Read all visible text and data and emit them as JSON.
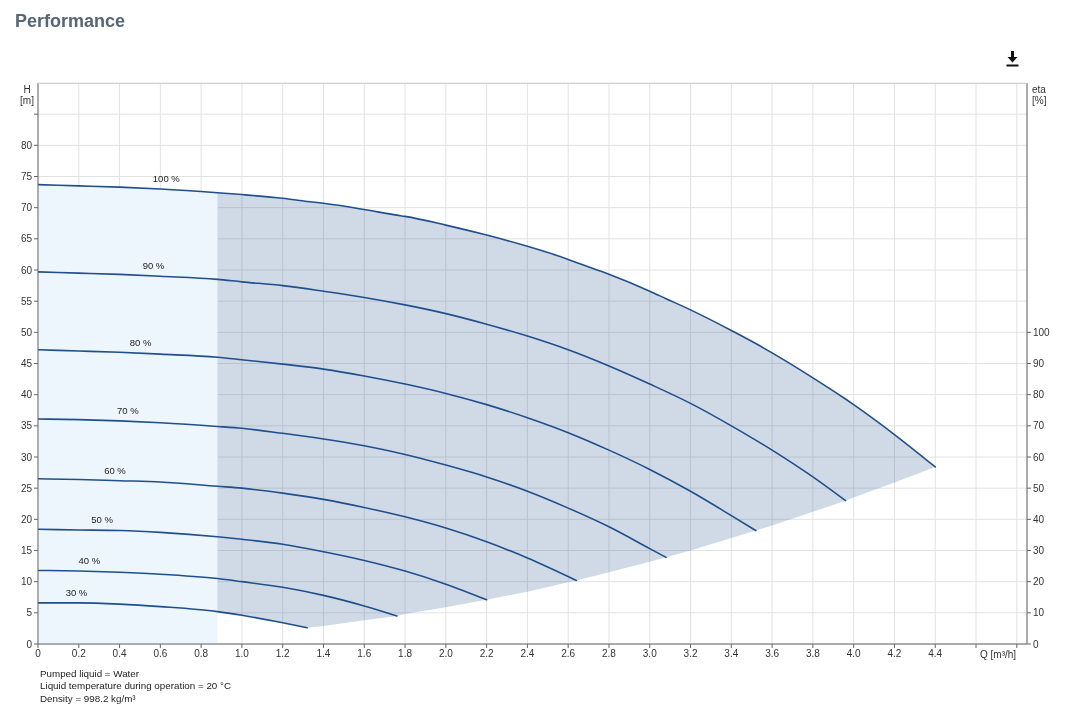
{
  "chart_data": {
    "type": "line",
    "title": "Performance",
    "xlabel": "Q [m³/h]",
    "ylabel": "H [m]",
    "y2label": "eta [%]",
    "annotations": [
      "Pumped liquid = Water",
      "Liquid temperature during operation = 20 °C",
      "Density = 998.2 kg/m³"
    ],
    "xlim": [
      0,
      4.85
    ],
    "xticks": [
      0,
      0.2,
      0.4,
      0.6,
      0.8,
      {
        "value": 1,
        "label": "1.0"
      },
      1.2,
      1.4,
      1.6,
      1.8,
      {
        "value": 2,
        "label": "2.0"
      },
      2.2,
      2.4,
      2.6,
      2.8,
      {
        "value": 3,
        "label": "3.0"
      },
      3.2,
      3.4,
      3.6,
      3.8,
      {
        "value": 4,
        "label": "4.0"
      },
      4.2,
      4.4,
      {
        "value": 4.6,
        "label": null
      },
      {
        "value": 4.8,
        "label": null
      }
    ],
    "ylim": [
      0,
      90
    ],
    "yticks": [
      0,
      5,
      10,
      15,
      20,
      25,
      30,
      35,
      40,
      45,
      50,
      55,
      60,
      65,
      70,
      75,
      80,
      {
        "value": 85,
        "label": null
      }
    ],
    "y2lim": [
      0,
      180
    ],
    "y2ticks": [
      0,
      10,
      20,
      30,
      40,
      50,
      60,
      70,
      80,
      90,
      100
    ],
    "grid": true,
    "series": [
      {
        "type": "area",
        "color": "#eef6fd",
        "x": [
          0,
          0.2,
          0.4,
          0.6,
          0.88
        ],
        "values": [
          73.7,
          73.5,
          73.3,
          73.0,
          72.4
        ]
      },
      {
        "name": "100 %",
        "color": "#1f4f8c",
        "x": [
          0,
          0.2,
          0.4,
          0.6,
          0.88,
          1.0,
          1.2,
          1.32,
          1.4,
          1.6,
          1.76,
          1.8,
          2.0,
          2.2,
          2.4,
          2.6,
          2.64,
          2.8,
          3.0,
          3.08,
          3.2,
          3.4,
          3.52,
          3.6,
          3.8,
          3.96,
          4.0,
          4.2,
          4.4
        ],
        "values": [
          73.7,
          73.5,
          73.3,
          73.0,
          72.4,
          72.1,
          71.5,
          71.0,
          70.7,
          69.7,
          68.8,
          68.6,
          67.2,
          65.6,
          63.8,
          61.7,
          61.2,
          59.3,
          56.6,
          55.4,
          53.6,
          50.3,
          48.2,
          46.7,
          42.7,
          39.3,
          38.4,
          33.6,
          28.4
        ],
        "lower": [
          null,
          null,
          null,
          null,
          5.2,
          4.6,
          3.4,
          2.6,
          2.9,
          3.8,
          4.5,
          4.8,
          5.9,
          7.1,
          8.4,
          9.9,
          10.2,
          11.5,
          13.2,
          13.9,
          15.0,
          17.0,
          18.2,
          19.0,
          21.2,
          23.0,
          23.5,
          25.9,
          28.4
        ],
        "upper": [
          null,
          null,
          null,
          null,
          72.4,
          72.1,
          71.5,
          71.0,
          70.7,
          69.7,
          68.8,
          68.6,
          67.2,
          65.6,
          63.8,
          61.7,
          61.2,
          59.3,
          56.6,
          55.4,
          53.6,
          50.3,
          48.2,
          46.7,
          42.7,
          39.3,
          38.4,
          33.6,
          28.4
        ]
      },
      {
        "name": "90 %",
        "color": "#1f4f8c",
        "x": [
          0,
          0.2,
          0.4,
          0.6,
          0.88,
          1.0,
          1.2,
          1.4,
          1.6,
          1.8,
          2.0,
          2.2,
          2.4,
          2.6,
          2.8,
          3.0,
          3.2,
          3.4,
          3.6,
          3.8,
          3.96
        ],
        "values": [
          59.7,
          59.5,
          59.3,
          59.0,
          58.5,
          58.1,
          57.5,
          56.6,
          55.6,
          54.4,
          53.0,
          51.3,
          49.4,
          47.2,
          44.6,
          41.7,
          38.6,
          35.0,
          31.1,
          26.8,
          23.0
        ]
      },
      {
        "name": "80 %",
        "color": "#1f4f8c",
        "x": [
          0,
          0.2,
          0.4,
          0.6,
          0.88,
          1.0,
          1.2,
          1.4,
          1.6,
          1.8,
          2.0,
          2.2,
          2.4,
          2.6,
          2.8,
          3.0,
          3.2,
          3.4,
          3.52
        ],
        "values": [
          47.2,
          47.0,
          46.8,
          46.5,
          46.0,
          45.6,
          44.9,
          44.1,
          43.0,
          41.7,
          40.2,
          38.4,
          36.3,
          33.9,
          31.1,
          28.0,
          24.5,
          20.6,
          18.2
        ]
      },
      {
        "name": "70 %",
        "color": "#1f4f8c",
        "x": [
          0,
          0.2,
          0.4,
          0.6,
          0.88,
          1.0,
          1.2,
          1.4,
          1.6,
          1.8,
          2.0,
          2.2,
          2.4,
          2.6,
          2.8,
          3.0,
          3.08
        ],
        "values": [
          36.1,
          36.0,
          35.8,
          35.5,
          34.9,
          34.6,
          33.8,
          32.9,
          31.8,
          30.4,
          28.7,
          26.8,
          24.5,
          21.8,
          18.8,
          15.3,
          13.9
        ]
      },
      {
        "name": "60 %",
        "color": "#1f4f8c",
        "x": [
          0,
          0.2,
          0.4,
          0.6,
          0.88,
          1.0,
          1.2,
          1.4,
          1.6,
          1.8,
          2.0,
          2.2,
          2.4,
          2.64
        ],
        "values": [
          26.5,
          26.4,
          26.2,
          26.0,
          25.3,
          25.0,
          24.2,
          23.2,
          21.9,
          20.4,
          18.6,
          16.4,
          13.8,
          10.2
        ]
      },
      {
        "name": "50 %",
        "color": "#1f4f8c",
        "x": [
          0,
          0.2,
          0.4,
          0.6,
          0.88,
          1.0,
          1.2,
          1.4,
          1.6,
          1.8,
          2.0,
          2.2
        ],
        "values": [
          18.4,
          18.3,
          18.2,
          17.9,
          17.2,
          16.8,
          16.0,
          14.8,
          13.4,
          11.7,
          9.6,
          7.1
        ]
      },
      {
        "name": "40 %",
        "color": "#1f4f8c",
        "x": [
          0,
          0.2,
          0.4,
          0.6,
          0.88,
          1.0,
          1.2,
          1.4,
          1.6,
          1.76
        ],
        "values": [
          11.8,
          11.7,
          11.5,
          11.2,
          10.5,
          10.0,
          9.1,
          7.8,
          6.1,
          4.5
        ]
      },
      {
        "name": "30 %",
        "color": "#1f4f8c",
        "x": [
          0,
          0.2,
          0.4,
          0.6,
          0.88,
          1.0,
          1.2,
          1.32
        ],
        "values": [
          6.6,
          6.6,
          6.4,
          6.0,
          5.2,
          4.6,
          3.4,
          2.6
        ]
      }
    ]
  }
}
